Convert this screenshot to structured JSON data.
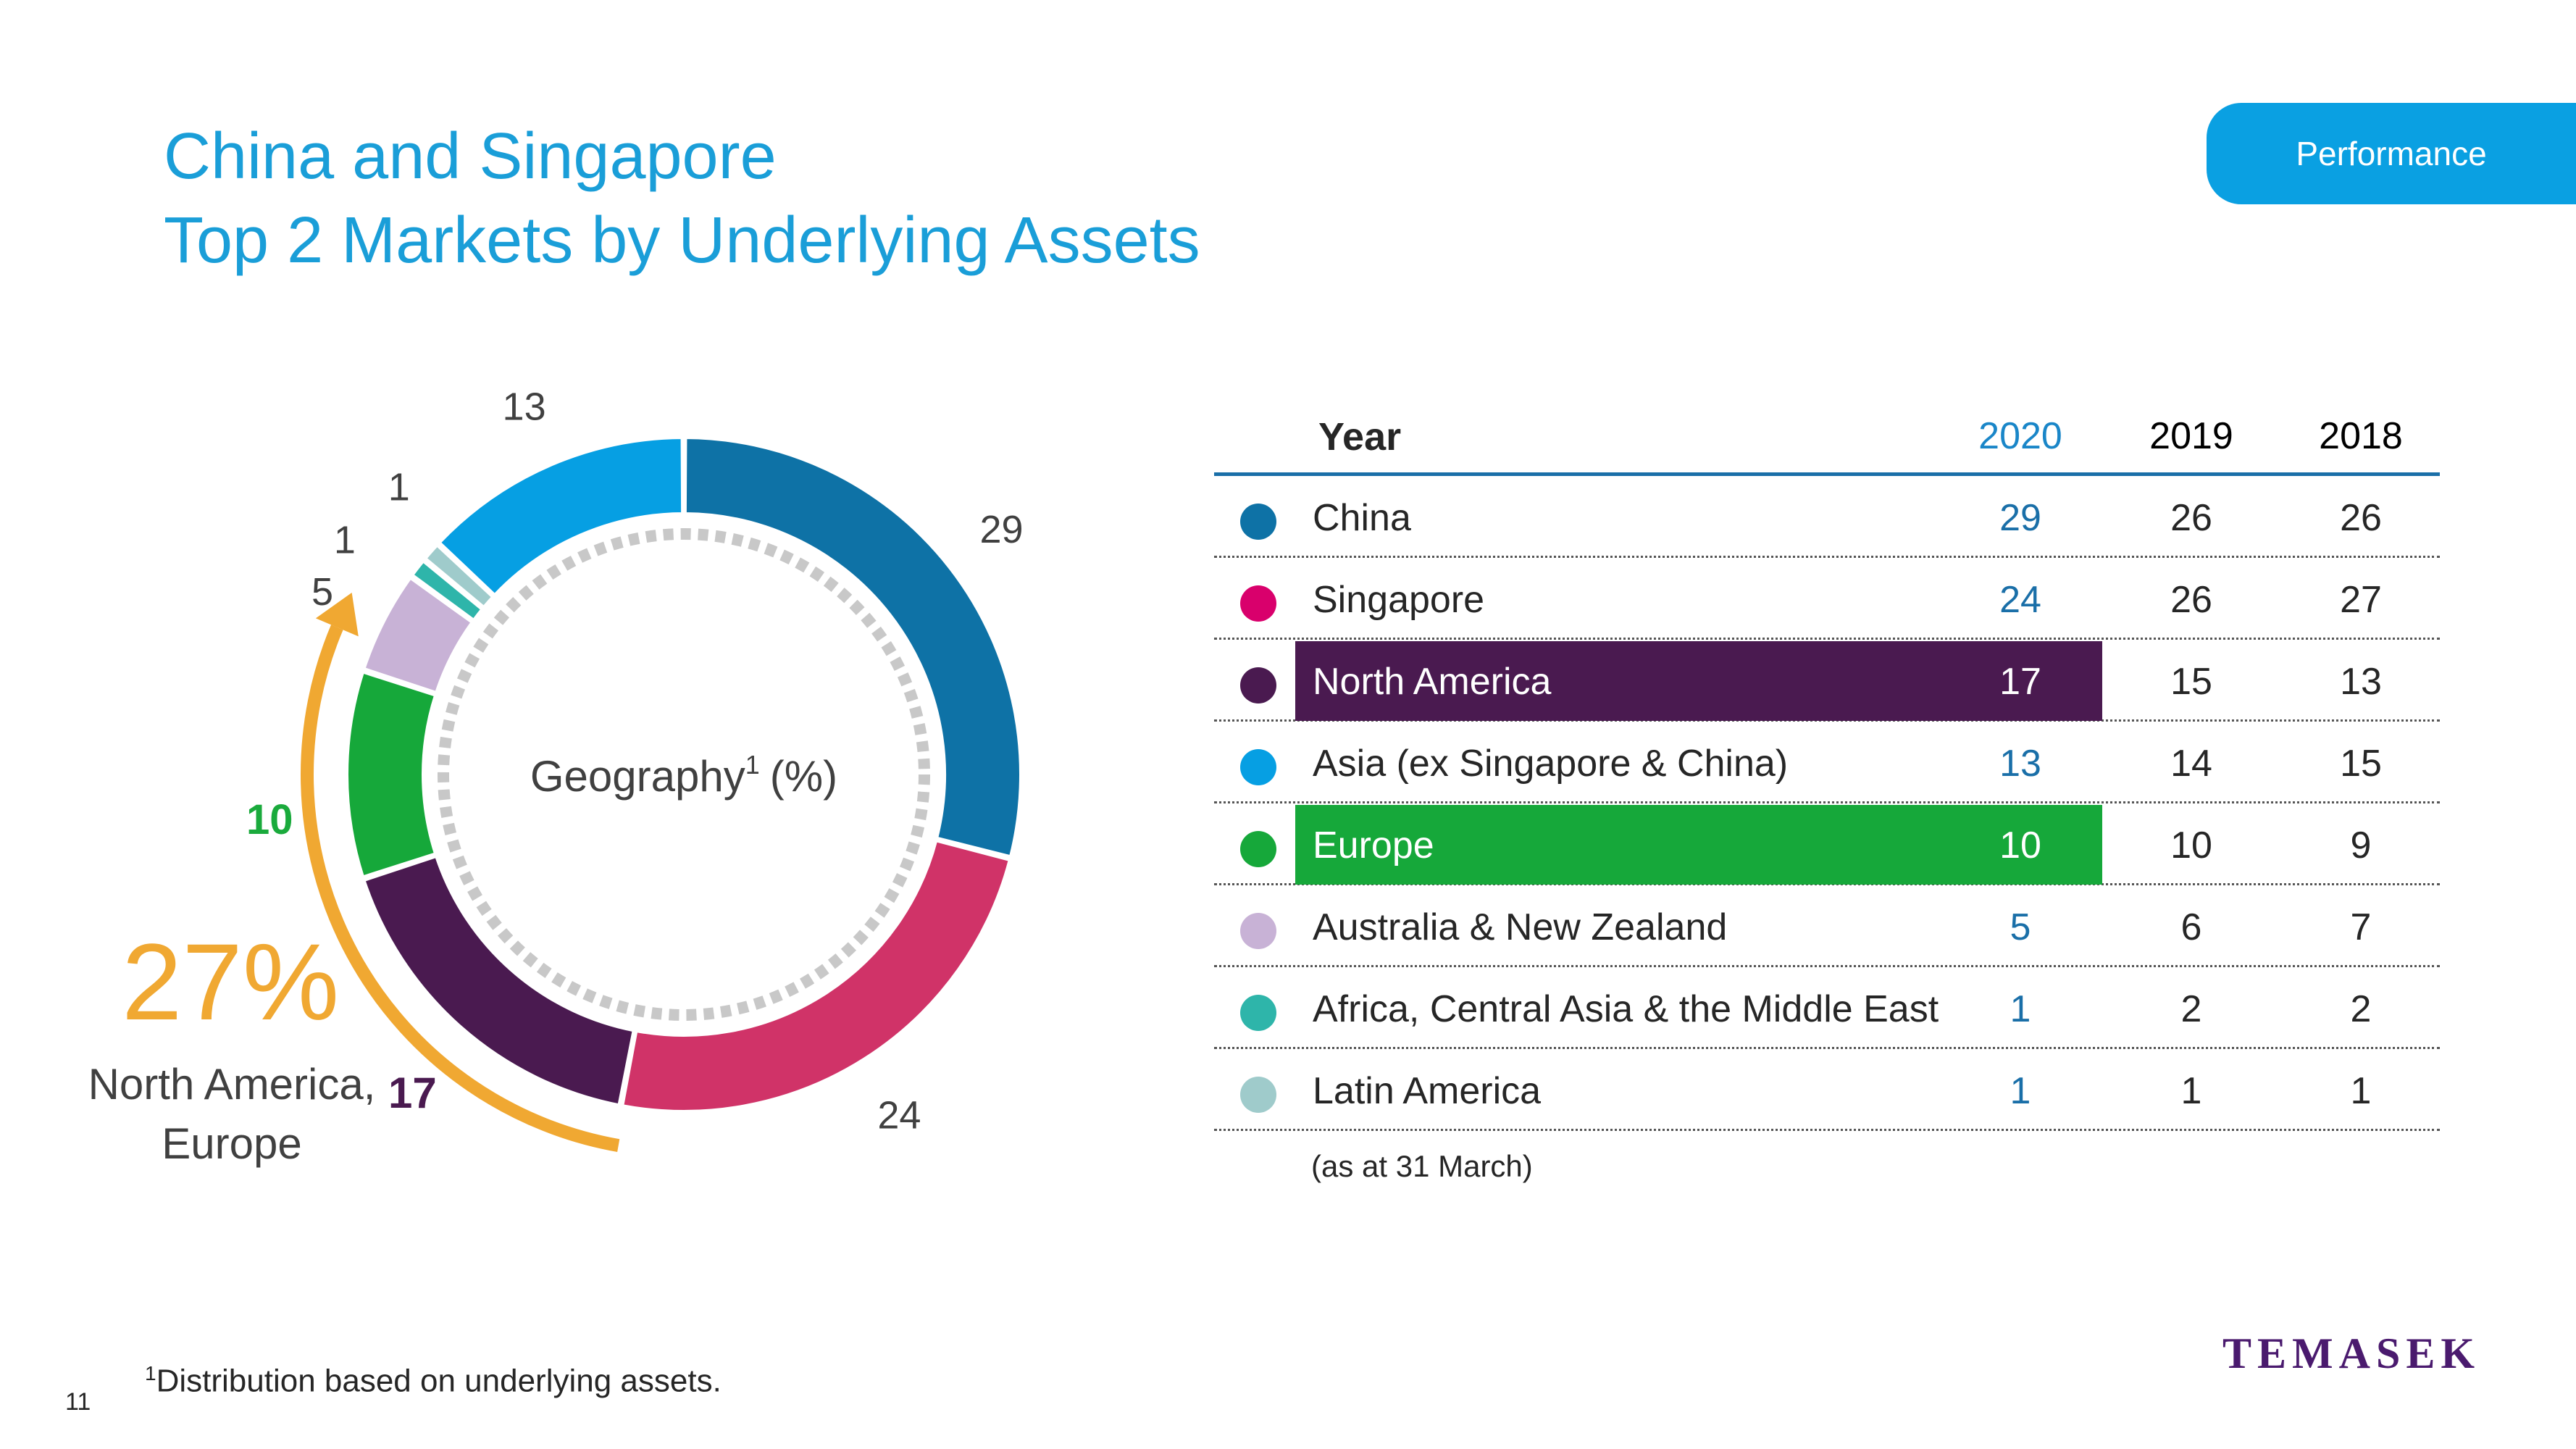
{
  "title": {
    "line1": "China and Singapore",
    "line2": "Top 2 Markets by Underlying Assets"
  },
  "tab": {
    "label": "Performance"
  },
  "chart_data": {
    "type": "pie",
    "title": "Geography",
    "title_sup": "1",
    "title_unit": "(%)",
    "categories": [
      "China",
      "Singapore",
      "North America",
      "Europe",
      "Australia & New Zealand",
      "Africa, Central Asia & the Middle East",
      "Latin America",
      "Asia (ex Singapore & China)"
    ],
    "values": [
      29,
      24,
      17,
      10,
      5,
      1,
      1,
      13
    ],
    "colors": [
      "#0e72a6",
      "#d03368",
      "#4a1a50",
      "#16a83a",
      "#c8b2d6",
      "#2eb5aa",
      "#9fcbcb",
      "#069fe3"
    ],
    "value_labels": [
      "29",
      "24",
      "",
      "",
      "5",
      "1",
      "1",
      "13"
    ]
  },
  "callout": {
    "percent": "27%",
    "regions_line1": "North America,",
    "regions_line2": "Europe",
    "na_value": "17",
    "europe_value": "10",
    "color": "#f0a832"
  },
  "table": {
    "header": {
      "year": "Year",
      "y2020": "2020",
      "y2019": "2019",
      "y2018": "2018"
    },
    "rows": [
      {
        "name": "China",
        "v2020": "29",
        "v2019": "26",
        "v2018": "26",
        "color": "#0e72a6",
        "highlight": ""
      },
      {
        "name": "Singapore",
        "v2020": "24",
        "v2019": "26",
        "v2018": "27",
        "color": "#d9006c",
        "highlight": ""
      },
      {
        "name": "North America",
        "v2020": "17",
        "v2019": "15",
        "v2018": "13",
        "color": "#4a1a50",
        "highlight": "#4a1a50"
      },
      {
        "name": "Asia (ex Singapore & China)",
        "v2020": "13",
        "v2019": "14",
        "v2018": "15",
        "color": "#069fe3",
        "highlight": ""
      },
      {
        "name": "Europe",
        "v2020": "10",
        "v2019": "10",
        "v2018": "9",
        "color": "#16a83a",
        "highlight": "#16a83a"
      },
      {
        "name": "Australia & New Zealand",
        "v2020": "5",
        "v2019": "6",
        "v2018": "7",
        "color": "#c8b2d6",
        "highlight": ""
      },
      {
        "name": "Africa, Central Asia & the Middle East",
        "v2020": "1",
        "v2019": "2",
        "v2018": "2",
        "color": "#2eb5aa",
        "highlight": ""
      },
      {
        "name": "Latin America",
        "v2020": "1",
        "v2019": "1",
        "v2018": "1",
        "color": "#9fcbcb",
        "highlight": ""
      }
    ],
    "note": "(as at 31 March)"
  },
  "footnote": {
    "marker": "1",
    "text": "Distribution based on underlying assets."
  },
  "page_number": "11",
  "logo": "TEMASEK"
}
